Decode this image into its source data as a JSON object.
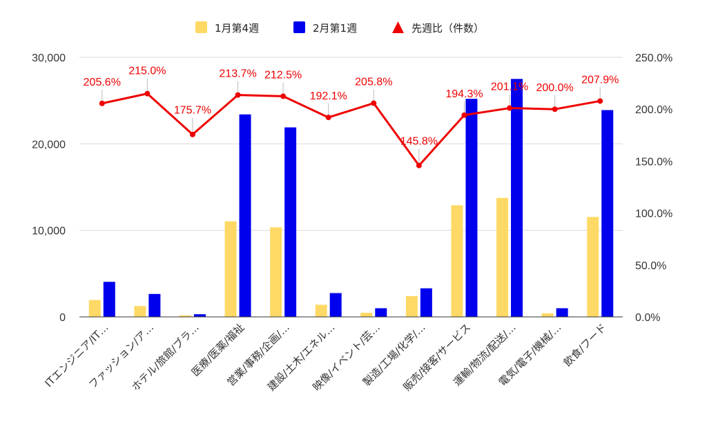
{
  "chart_data": {
    "type": "bar",
    "categories": [
      "ITエンジニア/IT…",
      "ファッション/ア…",
      "ホテル/旅館/ブラ…",
      "医療/医薬/福祉",
      "営業/事務/企画/…",
      "建設/土木/エネル…",
      "映像/イベント/芸…",
      "製造/工場/化学/…",
      "販売/接客/サービス",
      "運輸/物流/配送/…",
      "電気/電子/機械/…",
      "飲食/フード"
    ],
    "series": [
      {
        "name": "1月第4週",
        "type": "bar",
        "axis": "left",
        "color": "#ffd966",
        "values": [
          1950,
          1250,
          180,
          11050,
          10350,
          1400,
          480,
          2400,
          12900,
          13750,
          420,
          11550
        ]
      },
      {
        "name": "2月第1週",
        "type": "bar",
        "axis": "left",
        "color": "#0000ee",
        "values": [
          4050,
          2650,
          310,
          23400,
          21900,
          2750,
          1000,
          3300,
          25200,
          27500,
          1000,
          23900
        ]
      },
      {
        "name": "先週比（件数）",
        "type": "line",
        "axis": "right",
        "color": "#ee0000",
        "values": [
          205.6,
          215.0,
          175.7,
          213.7,
          212.5,
          192.1,
          205.8,
          145.8,
          194.3,
          201.1,
          200.0,
          207.9
        ],
        "labels": [
          "205.6%",
          "215.0%",
          "175.7%",
          "213.7%",
          "212.5%",
          "192.1%",
          "205.8%",
          "145.8%",
          "194.3%",
          "201.1%",
          "200.0%",
          "207.9%"
        ]
      }
    ],
    "y_left": {
      "min": 0,
      "max": 30000,
      "ticks": [
        0,
        10000,
        20000,
        30000
      ],
      "tick_labels": [
        "0",
        "10,000",
        "20,000",
        "30,000"
      ]
    },
    "y_right": {
      "min": 0,
      "max": 250,
      "ticks": [
        0,
        50,
        100,
        150,
        200,
        250
      ],
      "tick_labels": [
        "0.0%",
        "50.0%",
        "100.0%",
        "150.0%",
        "200.0%",
        "250.0%"
      ]
    },
    "legend_position": "top",
    "grid": true,
    "title": "",
    "xlabel": "",
    "ylabel": ""
  }
}
